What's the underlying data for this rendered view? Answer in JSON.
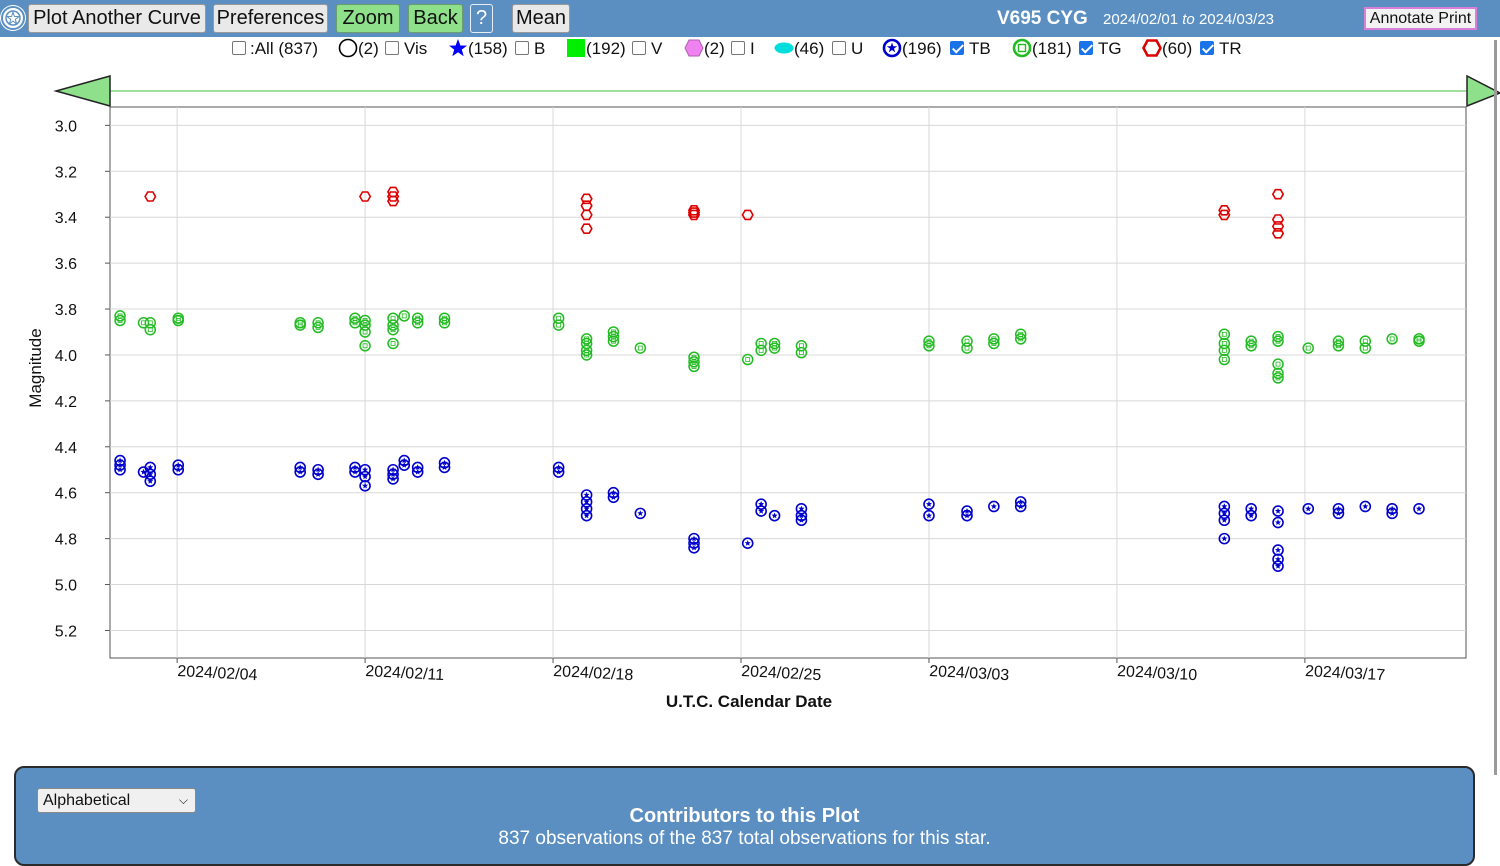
{
  "toolbar": {
    "plot_another_curve": "Plot Another Curve",
    "preferences": "Preferences",
    "zoom": "Zoom",
    "back": "Back",
    "help": "?",
    "mean": "Mean",
    "star_name": "V695 CYG",
    "date_from": "2024/02/01",
    "date_to_word": "to",
    "date_to": "2024/03/23",
    "annotate_print": "Annotate Print",
    "logo_icon": "aavso-logo-icon"
  },
  "legend": {
    "all": {
      "label": ":All (837)",
      "checked": false
    },
    "items": [
      {
        "count": "(2)",
        "band": "Vis",
        "checked": false,
        "symbol": "open-circle",
        "color": "#000000"
      },
      {
        "count": "(158)",
        "band": "B",
        "checked": false,
        "symbol": "star",
        "color": "#0000ff"
      },
      {
        "count": "(192)",
        "band": "V",
        "checked": false,
        "symbol": "square",
        "color": "#00ee00"
      },
      {
        "count": "(2)",
        "band": "I",
        "checked": false,
        "symbol": "hexagon",
        "color": "#ee82ee"
      },
      {
        "count": "(46)",
        "band": "U",
        "checked": false,
        "symbol": "ellipse",
        "color": "#00dddd"
      },
      {
        "count": "(196)",
        "band": "TB",
        "checked": true,
        "symbol": "ring-star",
        "color": "#0000cc"
      },
      {
        "count": "(181)",
        "band": "TG",
        "checked": true,
        "symbol": "ring-square",
        "color": "#22bb22"
      },
      {
        "count": "(60)",
        "band": "TR",
        "checked": true,
        "symbol": "ring-hexagon",
        "color": "#dd0000"
      }
    ]
  },
  "chart_data": {
    "type": "scatter",
    "xlabel": "U.T.C. Calendar Date",
    "ylabel": "Magnitude",
    "x_ticks": [
      "2024/02/04",
      "2024/02/11",
      "2024/02/18",
      "2024/02/25",
      "2024/03/03",
      "2024/03/10",
      "2024/03/17"
    ],
    "y_ticks": [
      "3.0",
      "3.2",
      "3.4",
      "3.6",
      "3.8",
      "4.0",
      "4.2",
      "4.4",
      "4.6",
      "4.8",
      "5.0",
      "5.2"
    ],
    "xlim": [
      "2024/02/01 12:00",
      "2024/03/23"
    ],
    "ylim": [
      2.92,
      5.32
    ],
    "y_inverted": true,
    "grid": true,
    "series": [
      {
        "name": "TR",
        "color": "#dd0000",
        "points": [
          [
            "2024/02/03 00:00",
            3.31
          ],
          [
            "2024/02/11 00:00",
            3.31
          ],
          [
            "2024/02/12 01:00",
            3.29
          ],
          [
            "2024/02/12 01:00",
            3.31
          ],
          [
            "2024/02/12 01:00",
            3.33
          ],
          [
            "2024/02/19 06:00",
            3.32
          ],
          [
            "2024/02/19 06:00",
            3.35
          ],
          [
            "2024/02/19 06:00",
            3.39
          ],
          [
            "2024/02/19 06:00",
            3.45
          ],
          [
            "2024/02/23 06:00",
            3.37
          ],
          [
            "2024/02/23 06:00",
            3.38
          ],
          [
            "2024/02/23 06:00",
            3.39
          ],
          [
            "2024/02/25 06:00",
            3.39
          ],
          [
            "2024/03/14 00:00",
            3.37
          ],
          [
            "2024/03/14 00:00",
            3.39
          ],
          [
            "2024/03/16 00:00",
            3.3
          ],
          [
            "2024/03/16 00:00",
            3.41
          ],
          [
            "2024/03/16 00:00",
            3.44
          ],
          [
            "2024/03/16 00:00",
            3.47
          ]
        ]
      },
      {
        "name": "TG",
        "color": "#22bb22",
        "points": [
          [
            "2024/02/01 21:00",
            3.83
          ],
          [
            "2024/02/01 21:00",
            3.85
          ],
          [
            "2024/02/02 18:00",
            3.86
          ],
          [
            "2024/02/03 00:00",
            3.86
          ],
          [
            "2024/02/03 00:00",
            3.89
          ],
          [
            "2024/02/04 01:00",
            3.84
          ],
          [
            "2024/02/04 01:00",
            3.85
          ],
          [
            "2024/02/08 14:00",
            3.86
          ],
          [
            "2024/02/08 14:00",
            3.87
          ],
          [
            "2024/02/09 06:00",
            3.86
          ],
          [
            "2024/02/09 06:00",
            3.88
          ],
          [
            "2024/02/10 15:00",
            3.84
          ],
          [
            "2024/02/10 15:00",
            3.86
          ],
          [
            "2024/02/11 00:00",
            3.85
          ],
          [
            "2024/02/11 00:00",
            3.87
          ],
          [
            "2024/02/11 00:00",
            3.9
          ],
          [
            "2024/02/11 00:00",
            3.96
          ],
          [
            "2024/02/12 01:00",
            3.84
          ],
          [
            "2024/02/12 01:00",
            3.87
          ],
          [
            "2024/02/12 01:00",
            3.89
          ],
          [
            "2024/02/12 01:00",
            3.95
          ],
          [
            "2024/02/12 11:00",
            3.83
          ],
          [
            "2024/02/12 23:00",
            3.84
          ],
          [
            "2024/02/12 23:00",
            3.86
          ],
          [
            "2024/02/13 23:00",
            3.84
          ],
          [
            "2024/02/13 23:00",
            3.86
          ],
          [
            "2024/02/18 05:00",
            3.84
          ],
          [
            "2024/02/18 05:00",
            3.87
          ],
          [
            "2024/02/19 06:00",
            3.93
          ],
          [
            "2024/02/19 06:00",
            3.95
          ],
          [
            "2024/02/19 06:00",
            3.98
          ],
          [
            "2024/02/19 06:00",
            4.0
          ],
          [
            "2024/02/20 06:00",
            3.9
          ],
          [
            "2024/02/20 06:00",
            3.92
          ],
          [
            "2024/02/20 06:00",
            3.94
          ],
          [
            "2024/02/21 06:00",
            3.97
          ],
          [
            "2024/02/23 06:00",
            4.01
          ],
          [
            "2024/02/23 06:00",
            4.03
          ],
          [
            "2024/02/23 06:00",
            4.05
          ],
          [
            "2024/02/25 06:00",
            4.02
          ],
          [
            "2024/02/25 18:00",
            3.95
          ],
          [
            "2024/02/25 18:00",
            3.98
          ],
          [
            "2024/02/26 06:00",
            3.95
          ],
          [
            "2024/02/26 06:00",
            3.97
          ],
          [
            "2024/02/27 06:00",
            3.96
          ],
          [
            "2024/02/27 06:00",
            3.99
          ],
          [
            "2024/03/03 00:00",
            3.94
          ],
          [
            "2024/03/03 00:00",
            3.96
          ],
          [
            "2024/03/04 10:00",
            3.94
          ],
          [
            "2024/03/04 10:00",
            3.97
          ],
          [
            "2024/03/05 10:00",
            3.93
          ],
          [
            "2024/03/05 10:00",
            3.95
          ],
          [
            "2024/03/06 10:00",
            3.91
          ],
          [
            "2024/03/06 10:00",
            3.93
          ],
          [
            "2024/03/14 00:00",
            3.91
          ],
          [
            "2024/03/14 00:00",
            3.95
          ],
          [
            "2024/03/14 00:00",
            3.98
          ],
          [
            "2024/03/14 00:00",
            4.02
          ],
          [
            "2024/03/15 00:00",
            3.94
          ],
          [
            "2024/03/15 00:00",
            3.96
          ],
          [
            "2024/03/16 00:00",
            3.92
          ],
          [
            "2024/03/16 00:00",
            3.94
          ],
          [
            "2024/03/16 00:00",
            4.04
          ],
          [
            "2024/03/16 00:00",
            4.08
          ],
          [
            "2024/03/16 00:00",
            4.1
          ],
          [
            "2024/03/17 03:00",
            3.97
          ],
          [
            "2024/03/18 06:00",
            3.94
          ],
          [
            "2024/03/18 06:00",
            3.96
          ],
          [
            "2024/03/19 06:00",
            3.94
          ],
          [
            "2024/03/19 06:00",
            3.97
          ],
          [
            "2024/03/20 06:00",
            3.93
          ],
          [
            "2024/03/21 06:00",
            3.93
          ],
          [
            "2024/03/21 06:00",
            3.94
          ]
        ]
      },
      {
        "name": "TB",
        "color": "#0000cc",
        "points": [
          [
            "2024/02/01 21:00",
            4.46
          ],
          [
            "2024/02/01 21:00",
            4.48
          ],
          [
            "2024/02/01 21:00",
            4.5
          ],
          [
            "2024/02/02 18:00",
            4.51
          ],
          [
            "2024/02/03 00:00",
            4.49
          ],
          [
            "2024/02/03 00:00",
            4.52
          ],
          [
            "2024/02/03 00:00",
            4.55
          ],
          [
            "2024/02/04 01:00",
            4.48
          ],
          [
            "2024/02/04 01:00",
            4.5
          ],
          [
            "2024/02/08 14:00",
            4.49
          ],
          [
            "2024/02/08 14:00",
            4.51
          ],
          [
            "2024/02/09 06:00",
            4.5
          ],
          [
            "2024/02/09 06:00",
            4.52
          ],
          [
            "2024/02/10 15:00",
            4.49
          ],
          [
            "2024/02/10 15:00",
            4.51
          ],
          [
            "2024/02/11 00:00",
            4.5
          ],
          [
            "2024/02/11 00:00",
            4.53
          ],
          [
            "2024/02/11 00:00",
            4.57
          ],
          [
            "2024/02/12 01:00",
            4.5
          ],
          [
            "2024/02/12 01:00",
            4.52
          ],
          [
            "2024/02/12 01:00",
            4.54
          ],
          [
            "2024/02/12 11:00",
            4.46
          ],
          [
            "2024/02/12 11:00",
            4.48
          ],
          [
            "2024/02/12 23:00",
            4.49
          ],
          [
            "2024/02/12 23:00",
            4.51
          ],
          [
            "2024/02/13 23:00",
            4.47
          ],
          [
            "2024/02/13 23:00",
            4.49
          ],
          [
            "2024/02/18 05:00",
            4.49
          ],
          [
            "2024/02/18 05:00",
            4.51
          ],
          [
            "2024/02/19 06:00",
            4.61
          ],
          [
            "2024/02/19 06:00",
            4.64
          ],
          [
            "2024/02/19 06:00",
            4.67
          ],
          [
            "2024/02/19 06:00",
            4.7
          ],
          [
            "2024/02/20 06:00",
            4.6
          ],
          [
            "2024/02/20 06:00",
            4.62
          ],
          [
            "2024/02/21 06:00",
            4.69
          ],
          [
            "2024/02/23 06:00",
            4.8
          ],
          [
            "2024/02/23 06:00",
            4.82
          ],
          [
            "2024/02/23 06:00",
            4.84
          ],
          [
            "2024/02/25 06:00",
            4.82
          ],
          [
            "2024/02/25 18:00",
            4.65
          ],
          [
            "2024/02/25 18:00",
            4.68
          ],
          [
            "2024/02/26 06:00",
            4.7
          ],
          [
            "2024/02/27 06:00",
            4.67
          ],
          [
            "2024/02/27 06:00",
            4.7
          ],
          [
            "2024/02/27 06:00",
            4.72
          ],
          [
            "2024/03/03 00:00",
            4.65
          ],
          [
            "2024/03/03 00:00",
            4.7
          ],
          [
            "2024/03/04 10:00",
            4.68
          ],
          [
            "2024/03/04 10:00",
            4.7
          ],
          [
            "2024/03/05 10:00",
            4.66
          ],
          [
            "2024/03/06 10:00",
            4.64
          ],
          [
            "2024/03/06 10:00",
            4.66
          ],
          [
            "2024/03/14 00:00",
            4.66
          ],
          [
            "2024/03/14 00:00",
            4.69
          ],
          [
            "2024/03/14 00:00",
            4.72
          ],
          [
            "2024/03/14 00:00",
            4.8
          ],
          [
            "2024/03/15 00:00",
            4.67
          ],
          [
            "2024/03/15 00:00",
            4.7
          ],
          [
            "2024/03/16 00:00",
            4.68
          ],
          [
            "2024/03/16 00:00",
            4.73
          ],
          [
            "2024/03/16 00:00",
            4.85
          ],
          [
            "2024/03/16 00:00",
            4.89
          ],
          [
            "2024/03/16 00:00",
            4.92
          ],
          [
            "2024/03/17 03:00",
            4.67
          ],
          [
            "2024/03/18 06:00",
            4.67
          ],
          [
            "2024/03/18 06:00",
            4.69
          ],
          [
            "2024/03/19 06:00",
            4.66
          ],
          [
            "2024/03/20 06:00",
            4.67
          ],
          [
            "2024/03/20 06:00",
            4.69
          ],
          [
            "2024/03/21 06:00",
            4.67
          ]
        ]
      }
    ]
  },
  "bottom": {
    "sort_value": "Alphabetical",
    "contributors_title": "Contributors to this Plot",
    "contributors_summary": "837 observations of the 837 total observations for this star."
  }
}
